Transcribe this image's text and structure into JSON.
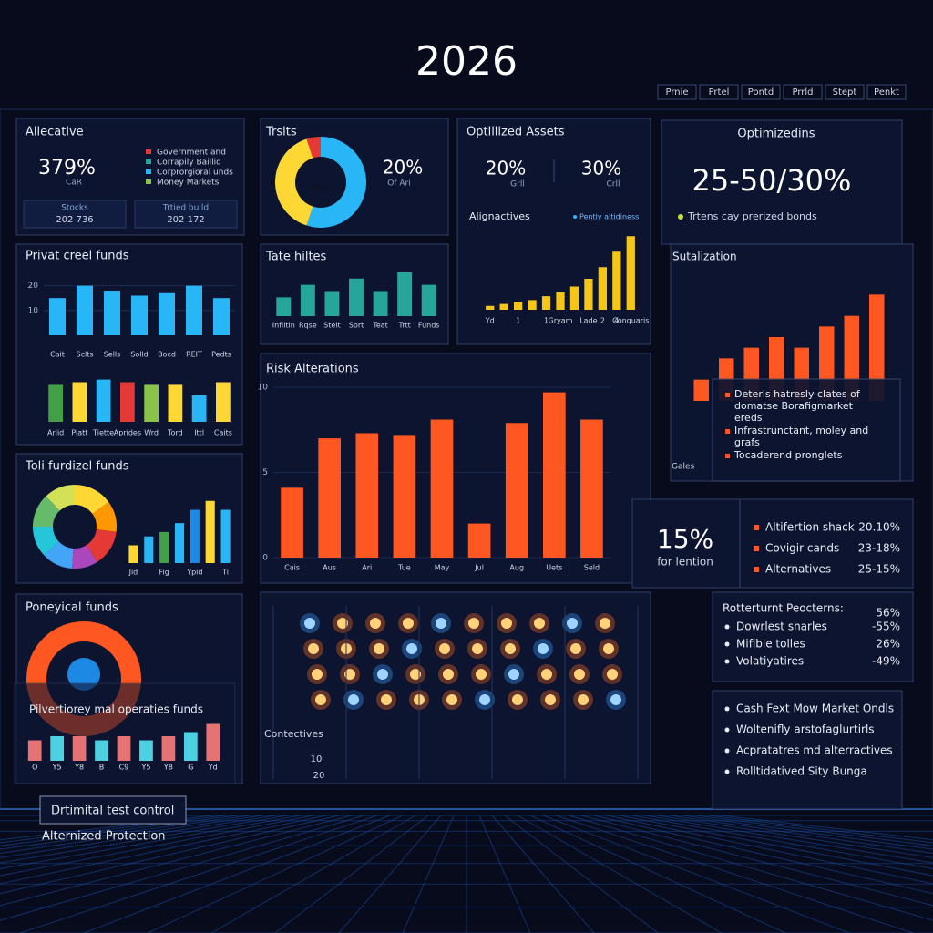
{
  "header": {
    "title": "2026",
    "tabs": [
      "Prnie",
      "Prtel",
      "Pontd",
      "Prrld",
      "Stept",
      "Penkt"
    ]
  },
  "allocative": {
    "title": "Allecative",
    "value": "379%",
    "value_label": "CaR",
    "legend": [
      {
        "label": "Government and",
        "color": "#e53935"
      },
      {
        "label": "Corrapily Baillid",
        "color": "#26a69a"
      },
      {
        "label": "Corprorgioral unds",
        "color": "#29b6f6"
      },
      {
        "label": "Money Markets",
        "color": "#8bc34a"
      }
    ],
    "boxes": [
      {
        "label": "Stocks",
        "value": "202 736"
      },
      {
        "label": "Trtied build",
        "value": "202 172"
      }
    ]
  },
  "traits": {
    "title": "Trsits",
    "center": "Fos",
    "value": "20%",
    "value_label": "Of Ari"
  },
  "optimized_assets": {
    "title": "Optiilized Assets",
    "stats": [
      {
        "value": "20%",
        "label": "Grll"
      },
      {
        "value": "30%",
        "label": "Crll"
      }
    ],
    "subtitle": "Alignactives",
    "legend": "Pently altidiness"
  },
  "optimizations": {
    "title": "Optimizedins",
    "value": "25-50/30%",
    "note": "Trtens cay prerized bonds"
  },
  "private_credit": {
    "title": "Privat creel funds"
  },
  "rate_hikes": {
    "title": "Tate hiltes"
  },
  "risk": {
    "title": "Risk Alterations"
  },
  "total_funds": {
    "title": "Toli furdizel funds"
  },
  "pension_funds": {
    "title": "Poneyical funds",
    "overlay": "Pilvertiorey mal operaties funds"
  },
  "contectives": {
    "title": "Contectives",
    "labels": [
      "10",
      "20"
    ]
  },
  "stabilization": {
    "title": "Sutalization",
    "x_label": "Gales",
    "notes": [
      [
        "Deterls hatresly clates of",
        "domatse Borafigmarket",
        "ereds"
      ],
      [
        "Infrastrunctant, moley and",
        "grafs"
      ],
      [
        "Tocaderend pronglets"
      ]
    ]
  },
  "retention": {
    "value": "15%",
    "label": "for lention"
  },
  "allocation_list": [
    {
      "label": "Altifertion shack",
      "value": "20.10%"
    },
    {
      "label": "Covigir cands",
      "value": "23-18%"
    },
    {
      "label": "Alternatives",
      "value": "25-15%"
    }
  ],
  "returns": {
    "title": "Rotterturnt Peocterns:",
    "value": "56%",
    "items": [
      {
        "label": "Dowrlest snarles",
        "value": "-55%"
      },
      {
        "label": "Mifible tolles",
        "value": "26%"
      },
      {
        "label": "Volatiyatires",
        "value": "-49%"
      }
    ]
  },
  "cash_list": [
    "Cash Fext Mow Market Ondls",
    "Woltenifly arstofaglurtirls",
    "Acpratatres md alterractives",
    "Rolltidatived Sity Bunga"
  ],
  "footer": {
    "button": "Drtimital test control",
    "caption": "Alternized Protection"
  },
  "chart_data": [
    {
      "type": "pie",
      "values": [
        55,
        40,
        5
      ],
      "colors": [
        "#29b6f6",
        "#fdd835",
        "#e53935"
      ]
    },
    {
      "type": "bar",
      "categories": [
        "Yd",
        null,
        "1",
        null,
        "1",
        "Gryam",
        null,
        "Lade",
        "2",
        "4",
        "Conquaris"
      ],
      "values": [
        1,
        1.5,
        2,
        2.5,
        3.5,
        4.5,
        6,
        8,
        11,
        15,
        19
      ],
      "color": "#f5c518",
      "ylim": [
        0,
        20
      ]
    },
    {
      "type": "bar",
      "categories": [
        "Cait",
        "Sclts",
        "Sells",
        "Solld",
        "Bocd",
        "REIT",
        "Pedts"
      ],
      "values": [
        15,
        20,
        18,
        16,
        17,
        20,
        15
      ],
      "color": "#29b6f6",
      "ylim": [
        0,
        25
      ],
      "yticks": [
        10,
        20
      ]
    },
    {
      "type": "bar",
      "categories": [
        "Arlid",
        "Piatt",
        "Tiette",
        "Aprides",
        "Wrd",
        "Tord",
        "Ittl",
        "Caits"
      ],
      "values": [
        14,
        15,
        16,
        15,
        14,
        14,
        10,
        15
      ],
      "colors": [
        "#43a047",
        "#fdd835",
        "#29b6f6",
        "#e53935",
        "#8bc34a",
        "#fdd835",
        "#29b6f6",
        "#fdd835"
      ],
      "ylim": [
        0,
        20
      ]
    },
    {
      "type": "bar",
      "categories": [
        "Inflitin",
        "Rqse",
        "Stelt",
        "Sbrt",
        "Teat",
        "Trtt",
        "Funds"
      ],
      "values": [
        3,
        5,
        4,
        6,
        4,
        7,
        5
      ],
      "color": "#26a69a",
      "ylim": [
        0,
        8
      ]
    },
    {
      "type": "bar",
      "categories": [
        "Cais",
        "Aus",
        "Ari",
        "Tue",
        "May",
        "Jul",
        "Aug",
        "Uets",
        "Seld"
      ],
      "values": [
        4.1,
        7.0,
        7.3,
        7.2,
        8.1,
        2.0,
        7.9,
        9.7,
        8.1
      ],
      "color": "#ff5722",
      "ylim": [
        0,
        10
      ],
      "yticks": [
        0,
        5,
        10
      ]
    },
    {
      "type": "pie",
      "values": [
        15,
        12,
        14,
        10,
        12,
        12,
        13,
        12
      ],
      "colors": [
        "#fdd835",
        "#ff9800",
        "#e53935",
        "#ab47bc",
        "#42a5f5",
        "#26c6da",
        "#66bb6a",
        "#d4e157"
      ]
    },
    {
      "type": "bar",
      "categories": [
        "Jid",
        null,
        "Fig",
        null,
        "Ypid",
        null,
        "Ti"
      ],
      "values": [
        2,
        3,
        3.5,
        4.5,
        6,
        7,
        6
      ],
      "colors": [
        "#fdd835",
        "#29b6f6",
        "#43a047",
        "#29b6f6",
        "#1e88e5",
        "#fdd835",
        "#29b6f6"
      ],
      "ylim": [
        0,
        8
      ]
    },
    {
      "type": "bar",
      "categories": [
        null,
        null,
        null,
        null,
        null,
        null,
        null,
        null
      ],
      "values": [
        2,
        4,
        5,
        6,
        5,
        7,
        8,
        10
      ],
      "color": "#ff5722",
      "ylim": [
        0,
        12
      ]
    },
    {
      "type": "bar",
      "categories": [
        "O",
        "Y5",
        "Y8",
        "B",
        "C9",
        "Y5",
        "Y8",
        "G",
        "Yd"
      ],
      "values": [
        5,
        6,
        6,
        5,
        6,
        5,
        6,
        7,
        9
      ],
      "colors": [
        "#e57373",
        "#4dd0e1",
        "#e57373",
        "#4dd0e1",
        "#e57373",
        "#4dd0e1",
        "#e57373",
        "#4dd0e1",
        "#e57373"
      ],
      "ylim": [
        0,
        10
      ]
    }
  ]
}
